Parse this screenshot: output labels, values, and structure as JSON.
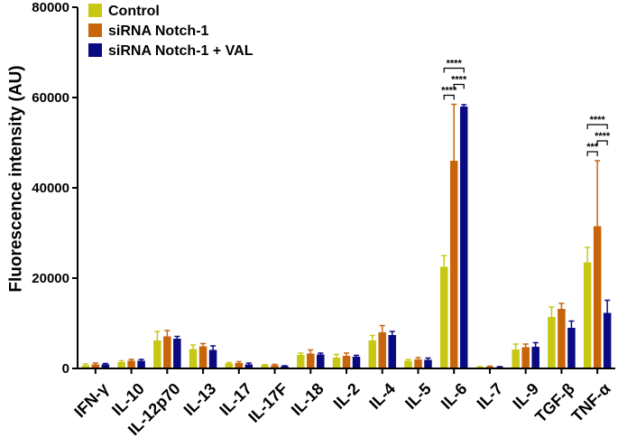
{
  "chart_data": {
    "type": "bar",
    "ylabel": "Fluorescence intensity (AU)",
    "ylim": [
      0,
      80000
    ],
    "yticks": [
      0,
      20000,
      40000,
      60000,
      80000
    ],
    "ytick_labels": [
      "0",
      "20000",
      "40000",
      "60000",
      "80000"
    ],
    "grid": false,
    "legend_position": "top-left",
    "categories": [
      "IFN-γ",
      "IL-10",
      "IL-12p70",
      "IL-13",
      "IL-17",
      "IL-17F",
      "IL-18",
      "IL-2",
      "IL-4",
      "IL-5",
      "IL-6",
      "IL-7",
      "IL-9",
      "TGF-β",
      "TNF-α"
    ],
    "series": [
      {
        "name": "Control",
        "color": "#c8c814",
        "values": [
          700,
          1400,
          6200,
          4300,
          1100,
          700,
          3000,
          2400,
          6200,
          1700,
          22500,
          300,
          4200,
          11400,
          23500
        ],
        "errors": [
          300,
          300,
          2000,
          900,
          200,
          150,
          400,
          700,
          1100,
          300,
          2500,
          100,
          1200,
          2200,
          3300
        ]
      },
      {
        "name": "siRNA Notch-1",
        "color": "#c8650a",
        "values": [
          900,
          1700,
          7100,
          4900,
          1200,
          700,
          3300,
          2800,
          8000,
          2000,
          46000,
          400,
          4700,
          13200,
          31500
        ],
        "errors": [
          300,
          300,
          1300,
          600,
          300,
          200,
          800,
          600,
          1500,
          400,
          12500,
          100,
          700,
          1200,
          14500
        ]
      },
      {
        "name": "siRNA Notch-1 + VAL",
        "color": "#0a0a82",
        "values": [
          900,
          1700,
          6600,
          4100,
          900,
          500,
          3100,
          2600,
          7400,
          1900,
          58000,
          300,
          4800,
          9000,
          12300
        ],
        "errors": [
          200,
          300,
          500,
          900,
          300,
          100,
          300,
          300,
          800,
          400,
          400,
          100,
          900,
          1500,
          2800
        ]
      }
    ],
    "annotations": [
      {
        "category": "IL-6",
        "from_series": "Control",
        "to_series": "siRNA Notch-1",
        "label": "****"
      },
      {
        "category": "IL-6",
        "from_series": "Control",
        "to_series": "siRNA Notch-1 + VAL",
        "label": "****"
      },
      {
        "category": "IL-6",
        "from_series": "siRNA Notch-1",
        "to_series": "siRNA Notch-1 + VAL",
        "label": "****"
      },
      {
        "category": "TNF-α",
        "from_series": "Control",
        "to_series": "siRNA Notch-1",
        "label": "***"
      },
      {
        "category": "TNF-α",
        "from_series": "Control",
        "to_series": "siRNA Notch-1 + VAL",
        "label": "****"
      },
      {
        "category": "TNF-α",
        "from_series": "siRNA Notch-1",
        "to_series": "siRNA Notch-1 + VAL",
        "label": "****"
      }
    ]
  }
}
